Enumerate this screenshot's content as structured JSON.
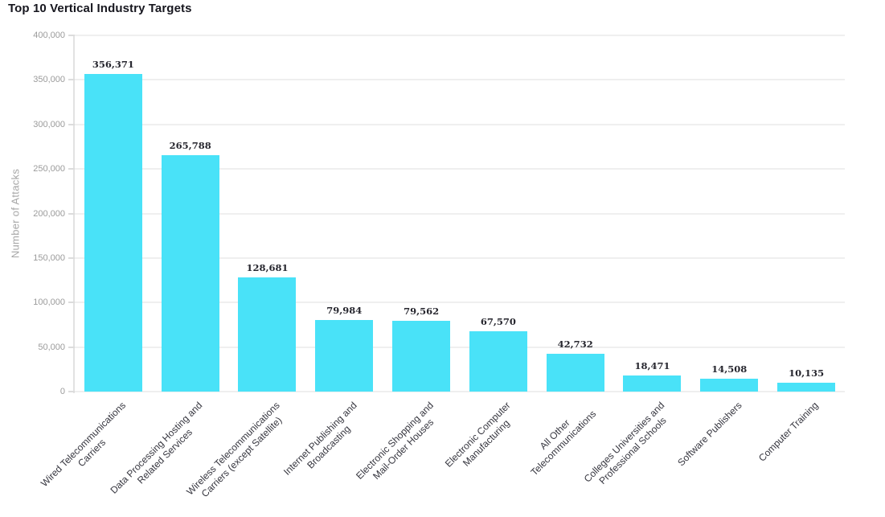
{
  "title": "Top 10 Vertical Industry Targets",
  "chart_data": {
    "type": "bar",
    "title": "Top 10 Vertical Industry Targets",
    "xlabel": "",
    "ylabel": "Number of Attacks",
    "ylim": [
      0,
      400000
    ],
    "grid": true,
    "legend": false,
    "bar_color": "#49e2f8",
    "y_ticks": [
      0,
      50000,
      100000,
      150000,
      200000,
      250000,
      300000,
      350000,
      400000
    ],
    "y_tick_labels": [
      "0",
      "50,000",
      "100,000",
      "150,000",
      "200,000",
      "250,000",
      "300,000",
      "350,000",
      "400,000"
    ],
    "categories": [
      "Wired Telecommunications\nCarriers",
      "Data Processing Hosting and\nRelated Services",
      "Wireless Telecommunications\nCarriers (except Satellite)",
      "Internet Publishing and\nBroadcasting",
      "Electronic Shopping and\nMail-Order Houses",
      "Electronic Computer\nManufacturing",
      "All Other\nTelecommunications",
      "Colleges Universities and\nProfessional Schools",
      "Software Publishers",
      "Computer Training"
    ],
    "values": [
      356371,
      265788,
      128681,
      79984,
      79562,
      67570,
      42732,
      18471,
      14508,
      10135
    ],
    "value_labels": [
      "356,371",
      "265,788",
      "128,681",
      "79,984",
      "79,562",
      "67,570",
      "42,732",
      "18,471",
      "14,508",
      "10,135"
    ]
  },
  "colors": {
    "bar": "#49e2f8",
    "title_text": "#17171f",
    "value_label_text": "#26262e",
    "category_label_text": "#36363f",
    "tick_label_text": "#9b9b9b",
    "axis_title_text": "#a6a6a6",
    "gridline": "#efefef",
    "axis_line": "#e2e2e2",
    "background": "#ffffff"
  }
}
